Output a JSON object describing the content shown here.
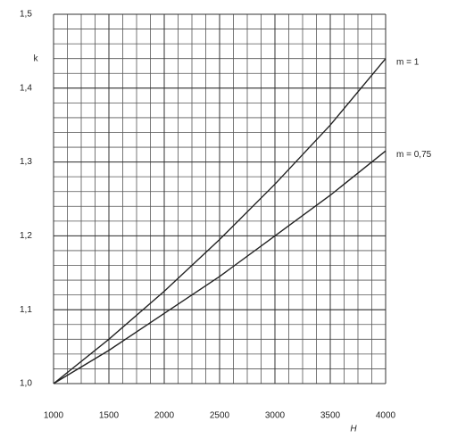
{
  "chart_data": {
    "type": "line",
    "y_label": "k",
    "x_label": "H",
    "x": [
      1000,
      1500,
      2000,
      2500,
      3000,
      3500,
      4000
    ],
    "series": [
      {
        "name": "m = 1",
        "color": "#222222",
        "values": [
          1.0,
          1.06,
          1.125,
          1.195,
          1.27,
          1.35,
          1.44
        ]
      },
      {
        "name": "m = 0,75",
        "color": "#222222",
        "values": [
          1.0,
          1.045,
          1.095,
          1.145,
          1.2,
          1.255,
          1.315
        ]
      }
    ],
    "xlim": [
      1000,
      4000
    ],
    "xticks": [
      1000,
      1500,
      2000,
      2500,
      3000,
      3500,
      4000
    ],
    "ylim": [
      1.0,
      1.5
    ],
    "yticks": [
      {
        "value": 1.0,
        "label": "1,0"
      },
      {
        "value": 1.1,
        "label": "1,1"
      },
      {
        "value": 1.2,
        "label": "1,2"
      },
      {
        "value": 1.3,
        "label": "1,3"
      },
      {
        "value": 1.4,
        "label": "1,4"
      },
      {
        "value": 1.5,
        "label": "1,5"
      }
    ],
    "grid": true
  }
}
